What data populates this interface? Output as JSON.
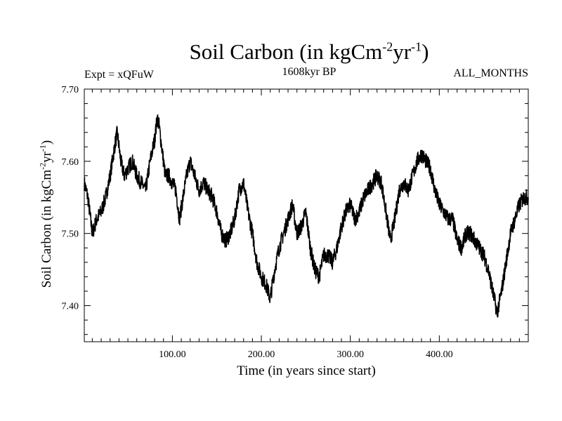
{
  "header": {
    "title_main": "Soil Carbon (in kgCm",
    "title_sup1": "-2",
    "title_mid": "yr",
    "title_sup2": "-1",
    "title_end": ")",
    "expt": "Expt = xQFuW",
    "subtitle": "1608kyr BP",
    "months": "ALL_MONTHS"
  },
  "axes": {
    "xlabel": "Time (in years since start)",
    "ylabel_main": "Soil Carbon (in kgCm",
    "ylabel_sup1": "-2",
    "ylabel_mid": "yr",
    "ylabel_sup2": "-1",
    "ylabel_end": ")"
  },
  "chart_data": {
    "type": "line",
    "title": "Soil Carbon (in kgCm-2yr-1)",
    "xlabel": "Time (in years since start)",
    "ylabel": "Soil Carbon (in kgCm-2yr-1)",
    "xlim": [
      1,
      500
    ],
    "ylim": [
      7.35,
      7.7
    ],
    "x_ticks": [
      100,
      200,
      300,
      400
    ],
    "x_tick_labels": [
      "100.00",
      "200.00",
      "300.00",
      "400.00"
    ],
    "y_ticks": [
      7.4,
      7.5,
      7.6,
      7.7
    ],
    "y_tick_labels": [
      "7.40",
      "7.50",
      "7.60",
      "7.70"
    ],
    "series": [
      {
        "name": "Soil Carbon",
        "x": [
          1,
          5,
          10,
          15,
          20,
          25,
          30,
          35,
          38,
          42,
          46,
          50,
          55,
          60,
          65,
          70,
          75,
          80,
          83,
          85,
          88,
          92,
          96,
          100,
          104,
          108,
          112,
          116,
          120,
          125,
          130,
          135,
          140,
          145,
          150,
          155,
          160,
          165,
          170,
          175,
          180,
          185,
          190,
          195,
          200,
          205,
          210,
          215,
          220,
          225,
          230,
          235,
          240,
          245,
          250,
          255,
          260,
          265,
          270,
          275,
          280,
          285,
          290,
          295,
          300,
          305,
          310,
          315,
          320,
          325,
          330,
          335,
          340,
          345,
          350,
          355,
          360,
          365,
          370,
          375,
          380,
          385,
          390,
          395,
          400,
          405,
          410,
          415,
          420,
          425,
          430,
          435,
          440,
          445,
          450,
          455,
          460,
          465,
          470,
          475,
          480,
          485,
          490,
          495,
          500
        ],
        "y": [
          7.57,
          7.55,
          7.5,
          7.52,
          7.53,
          7.55,
          7.58,
          7.62,
          7.64,
          7.6,
          7.58,
          7.59,
          7.6,
          7.58,
          7.57,
          7.56,
          7.6,
          7.63,
          7.66,
          7.65,
          7.62,
          7.58,
          7.58,
          7.57,
          7.56,
          7.52,
          7.55,
          7.58,
          7.6,
          7.58,
          7.56,
          7.57,
          7.56,
          7.55,
          7.53,
          7.5,
          7.49,
          7.5,
          7.52,
          7.56,
          7.57,
          7.53,
          7.5,
          7.46,
          7.44,
          7.43,
          7.41,
          7.45,
          7.48,
          7.5,
          7.52,
          7.54,
          7.5,
          7.51,
          7.53,
          7.48,
          7.45,
          7.44,
          7.47,
          7.47,
          7.46,
          7.48,
          7.51,
          7.53,
          7.54,
          7.52,
          7.53,
          7.55,
          7.56,
          7.57,
          7.58,
          7.57,
          7.53,
          7.49,
          7.52,
          7.56,
          7.57,
          7.56,
          7.58,
          7.6,
          7.61,
          7.6,
          7.59,
          7.56,
          7.54,
          7.53,
          7.52,
          7.52,
          7.49,
          7.48,
          7.5,
          7.5,
          7.49,
          7.48,
          7.47,
          7.45,
          7.42,
          7.39,
          7.42,
          7.46,
          7.5,
          7.52,
          7.54,
          7.55,
          7.55
        ]
      }
    ]
  }
}
